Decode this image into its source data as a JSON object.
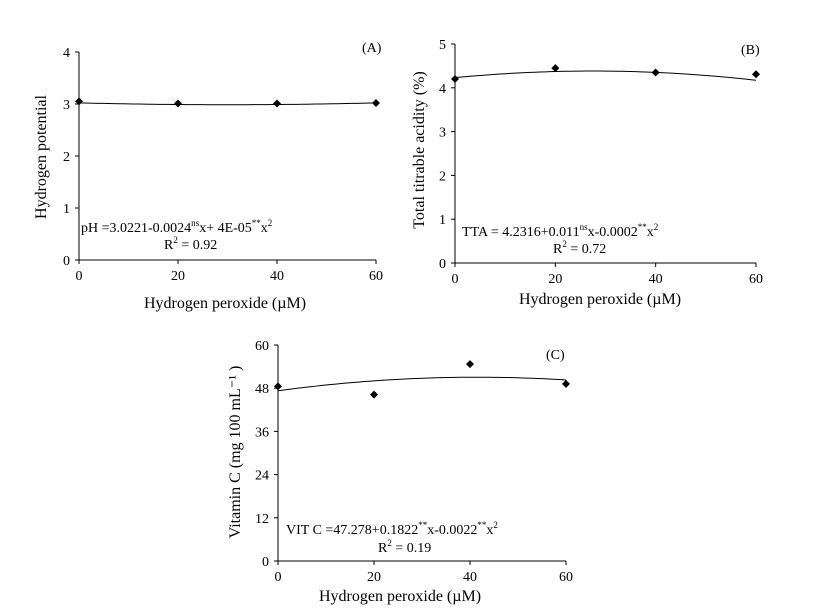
{
  "chart_data": [
    {
      "type": "scatter",
      "panel_label": "(A)",
      "xlabel": "Hydrogen peroxide (µM)",
      "ylabel": "Hydrogen potential",
      "x_ticks": [
        "0",
        "20",
        "40",
        "60"
      ],
      "y_ticks": [
        "0",
        "1",
        "2",
        "3",
        "4"
      ],
      "xlim": [
        0,
        60
      ],
      "ylim": [
        0,
        4
      ],
      "x": [
        0,
        20,
        40,
        60
      ],
      "y": [
        3.05,
        3.01,
        3.01,
        3.02
      ],
      "fit": {
        "type": "quadratic",
        "a": 3.0221,
        "b": -0.0024,
        "c": 4e-05
      },
      "equation": {
        "pre": "pH =3.0221-0.0024",
        "sup1": "ns",
        "mid": "x+ 4E-05",
        "sup2": "**",
        "post": "x",
        "exp": "2"
      },
      "r2": {
        "label": "R",
        "exp": "2",
        "value": " = 0.92"
      }
    },
    {
      "type": "scatter",
      "panel_label": "(B)",
      "xlabel": "Hydrogen peroxide  (µM)",
      "ylabel": "Total titrable acidity (%)",
      "x_ticks": [
        "0",
        "20",
        "40",
        "60"
      ],
      "y_ticks": [
        "0",
        "1",
        "2",
        "3",
        "4",
        "5"
      ],
      "xlim": [
        0,
        60
      ],
      "ylim": [
        0,
        5
      ],
      "x": [
        0,
        20,
        40,
        60
      ],
      "y": [
        4.2,
        4.45,
        4.35,
        4.31
      ],
      "fit": {
        "type": "quadratic",
        "a": 4.2316,
        "b": 0.011,
        "c": -0.0002
      },
      "equation": {
        "pre": "TTA = 4.2316+0.011",
        "sup1": "ns",
        "mid": "x-0.0002",
        "sup2": "**",
        "post": "x",
        "exp": "2"
      },
      "r2": {
        "label": "R",
        "exp": "2",
        "value": " = 0.72"
      }
    },
    {
      "type": "scatter",
      "panel_label": "(C)",
      "xlabel": "Hydrogen peroxide (µM)",
      "ylabel": "Vitamin C (mg 100 mL⁻¹ )",
      "x_ticks": [
        "0",
        "20",
        "40",
        "60"
      ],
      "y_ticks": [
        "0",
        "12",
        "24",
        "36",
        "48",
        "60"
      ],
      "xlim": [
        0,
        60
      ],
      "ylim": [
        0,
        60
      ],
      "x": [
        0,
        20,
        40,
        60
      ],
      "y": [
        48.5,
        46.2,
        54.7,
        49.2
      ],
      "fit": {
        "type": "quadratic",
        "a": 47.278,
        "b": 0.1822,
        "c": -0.0022
      },
      "equation": {
        "pre": "VIT C =47.278+0.1822",
        "sup1": "**",
        "mid": "x-0.0022",
        "sup2": "**",
        "post": "x",
        "exp": "2"
      },
      "r2": {
        "label": "R",
        "exp": "2",
        "value": " = 0.19"
      }
    }
  ]
}
